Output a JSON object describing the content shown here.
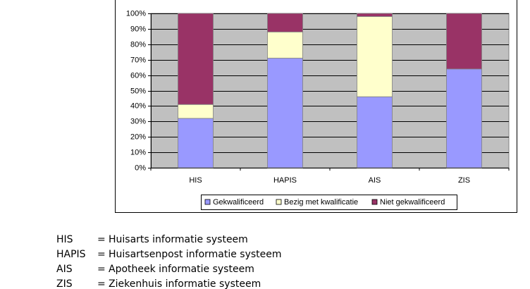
{
  "chart_data": {
    "type": "bar",
    "stacked": true,
    "categories": [
      "HIS",
      "HAPIS",
      "AIS",
      "ZIS"
    ],
    "series": [
      {
        "name": "Gekwalificeerd",
        "color": "#9999ff",
        "values": [
          32,
          71,
          46,
          64
        ]
      },
      {
        "name": "Bezig met kwalificatie",
        "color": "#ffffcc",
        "values": [
          9,
          17,
          52,
          0
        ]
      },
      {
        "name": "Niet gekwalificeerd",
        "color": "#993366",
        "values": [
          59,
          12,
          2,
          36
        ]
      }
    ],
    "ylim": [
      0,
      100
    ],
    "yticks": [
      {
        "value": 0,
        "label": "0%"
      },
      {
        "value": 10,
        "label": "10%"
      },
      {
        "value": 20,
        "label": "20%"
      },
      {
        "value": 30,
        "label": "30%"
      },
      {
        "value": 40,
        "label": "40%"
      },
      {
        "value": 50,
        "label": "50%"
      },
      {
        "value": 60,
        "label": "60%"
      },
      {
        "value": 70,
        "label": "70%"
      },
      {
        "value": 80,
        "label": "80%"
      },
      {
        "value": 90,
        "label": "90%"
      },
      {
        "value": 100,
        "label": "100%"
      }
    ],
    "grid": true,
    "legend": "bottom",
    "plot_background": "#c0c0c0"
  },
  "legend_notes": [
    {
      "abbreviation": "HIS",
      "definition": "Huisarts informatie systeem"
    },
    {
      "abbreviation": "HAPIS",
      "definition": "Huisartsenpost informatie systeem"
    },
    {
      "abbreviation": "AIS",
      "definition": "Apotheek informatie systeem"
    },
    {
      "abbreviation": "ZIS",
      "definition": "Ziekenhuis informatie systeem"
    }
  ]
}
